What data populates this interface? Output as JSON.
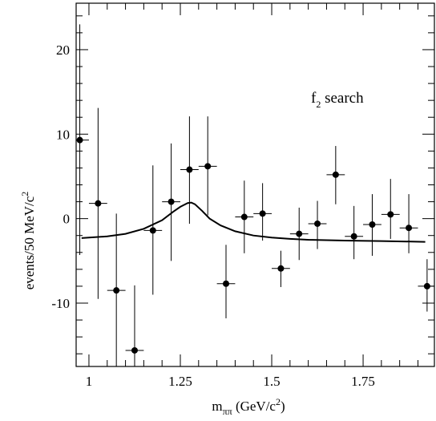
{
  "chart_data": {
    "type": "scatter",
    "xlabel_main": "m",
    "xlabel_sub": "ππ",
    "xlabel_unit": " (GeV/c",
    "xlabel_sup": "2",
    "xlabel_close": ")",
    "ylabel_main": "events/50 MeV/c",
    "ylabel_sup": "2",
    "annotation_main": "f",
    "annotation_sub": "2",
    "annotation_rest": " search",
    "xlim": [
      0.965,
      1.945
    ],
    "ylim": [
      -17.5,
      25.5
    ],
    "x_ticks": [
      1,
      1.25,
      1.5,
      1.75
    ],
    "x_tick_labels": [
      "1",
      "1.25",
      "1.5",
      "1.75"
    ],
    "y_ticks": [
      -10,
      0,
      10,
      20
    ],
    "y_tick_labels": [
      "-10",
      "0",
      "10",
      "20"
    ],
    "series": [
      {
        "style": "points-with-error-bars",
        "x_halfwidth": 0.025,
        "points": [
          {
            "x": 0.975,
            "y": 9.3,
            "ylo": -4.3,
            "yhi": 23.0
          },
          {
            "x": 1.025,
            "y": 1.8,
            "ylo": -9.5,
            "yhi": 13.1
          },
          {
            "x": 1.075,
            "y": -8.5,
            "ylo": -17.5,
            "yhi": 0.6
          },
          {
            "x": 1.125,
            "y": -15.6,
            "ylo": -17.5,
            "yhi": -7.9
          },
          {
            "x": 1.175,
            "y": -1.4,
            "ylo": -9.0,
            "yhi": 6.3
          },
          {
            "x": 1.225,
            "y": 2.0,
            "ylo": -5.0,
            "yhi": 8.9
          },
          {
            "x": 1.275,
            "y": 5.8,
            "ylo": -0.6,
            "yhi": 12.1
          },
          {
            "x": 1.325,
            "y": 6.2,
            "ylo": 0.4,
            "yhi": 12.1
          },
          {
            "x": 1.375,
            "y": -7.7,
            "ylo": -11.8,
            "yhi": -3.1
          },
          {
            "x": 1.425,
            "y": 0.2,
            "ylo": -4.1,
            "yhi": 4.5
          },
          {
            "x": 1.475,
            "y": 0.6,
            "ylo": -2.6,
            "yhi": 4.2
          },
          {
            "x": 1.525,
            "y": -5.9,
            "ylo": -8.1,
            "yhi": -3.8
          },
          {
            "x": 1.575,
            "y": -1.8,
            "ylo": -4.9,
            "yhi": 1.3
          },
          {
            "x": 1.625,
            "y": -0.6,
            "ylo": -3.6,
            "yhi": 2.1
          },
          {
            "x": 1.675,
            "y": 5.2,
            "ylo": 1.7,
            "yhi": 8.6
          },
          {
            "x": 1.725,
            "y": -2.1,
            "ylo": -4.8,
            "yhi": 1.5
          },
          {
            "x": 1.775,
            "y": -0.7,
            "ylo": -4.4,
            "yhi": 2.9
          },
          {
            "x": 1.825,
            "y": 0.5,
            "ylo": -2.4,
            "yhi": 4.7
          },
          {
            "x": 1.875,
            "y": -1.1,
            "ylo": -4.1,
            "yhi": 2.9
          },
          {
            "x": 1.925,
            "y": -8.0,
            "ylo": -11.0,
            "yhi": -4.8
          }
        ]
      },
      {
        "style": "line",
        "x": [
          0.98,
          1.0,
          1.05,
          1.1,
          1.15,
          1.2,
          1.23,
          1.25,
          1.27,
          1.28,
          1.29,
          1.31,
          1.33,
          1.36,
          1.4,
          1.45,
          1.5,
          1.55,
          1.6,
          1.7,
          1.8,
          1.92
        ],
        "y": [
          -2.3,
          -2.25,
          -2.1,
          -1.8,
          -1.2,
          -0.2,
          0.8,
          1.4,
          1.85,
          1.9,
          1.7,
          0.9,
          0.0,
          -0.8,
          -1.5,
          -2.0,
          -2.25,
          -2.4,
          -2.5,
          -2.6,
          -2.65,
          -2.75
        ]
      }
    ]
  }
}
